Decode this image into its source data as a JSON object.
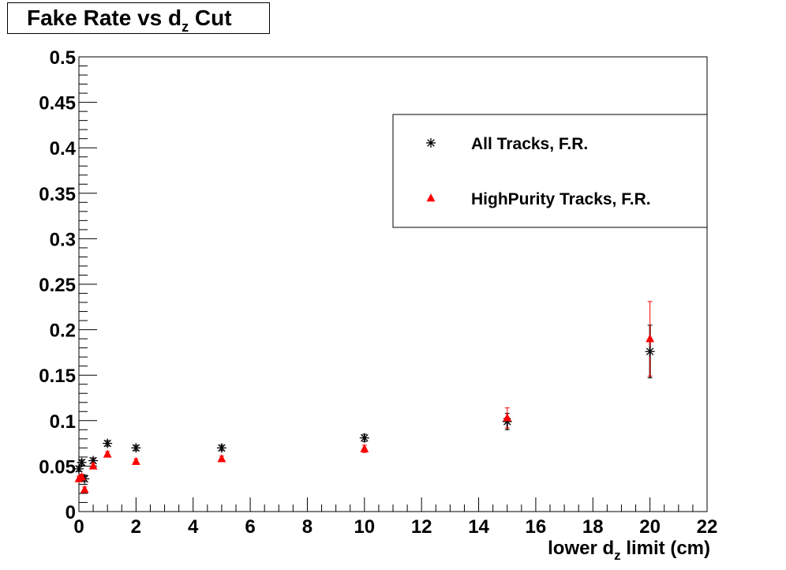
{
  "title": {
    "main": "Fake Rate vs d",
    "sub": "z",
    "tail": " Cut"
  },
  "chart_data": {
    "type": "scatter",
    "xlabel_main": "lower d",
    "xlabel_sub": "z",
    "xlabel_tail": " limit (cm)",
    "ylabel": "",
    "xlim": [
      0,
      22
    ],
    "ylim": [
      0,
      0.5
    ],
    "x_ticks": [
      "0",
      "2",
      "4",
      "6",
      "8",
      "10",
      "12",
      "14",
      "16",
      "18",
      "20",
      "22"
    ],
    "y_ticks": [
      "0",
      "0.05",
      "0.1",
      "0.15",
      "0.2",
      "0.25",
      "0.3",
      "0.35",
      "0.4",
      "0.45",
      "0.5"
    ],
    "grid": false,
    "legend_position": "top-right",
    "series": [
      {
        "name": "All Tracks, F.R.",
        "marker": "star",
        "color": "#000000",
        "x": [
          0,
          0.1,
          0.2,
          0.5,
          1,
          2,
          5,
          10,
          15,
          20
        ],
        "y": [
          0.047,
          0.054,
          0.036,
          0.056,
          0.075,
          0.07,
          0.07,
          0.081,
          0.099,
          0.176
        ],
        "err": [
          0.003,
          0.003,
          0.003,
          0.003,
          0.003,
          0.003,
          0.003,
          0.004,
          0.009,
          0.029
        ]
      },
      {
        "name": "HighPurity Tracks, F.R.",
        "marker": "triangle",
        "color": "#ff0000",
        "x": [
          0,
          0.1,
          0.2,
          0.5,
          1,
          2,
          5,
          10,
          15,
          20
        ],
        "y": [
          0.036,
          0.038,
          0.024,
          0.05,
          0.063,
          0.055,
          0.058,
          0.069,
          0.103,
          0.19
        ],
        "err": [
          0.003,
          0.003,
          0.003,
          0.003,
          0.003,
          0.003,
          0.003,
          0.004,
          0.011,
          0.041
        ]
      }
    ]
  }
}
